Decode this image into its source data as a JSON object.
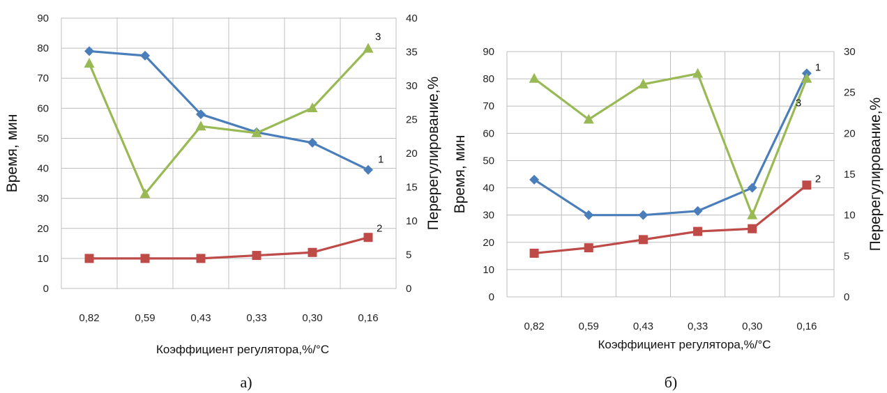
{
  "colors": {
    "series1": "#4a7ebb",
    "series2": "#be4b48",
    "series3": "#98b954",
    "grid": "#bdbdbd"
  },
  "chart_data": [
    {
      "type": "line",
      "panel_label": "а)",
      "categories": [
        "0,82",
        "0,59",
        "0,43",
        "0,33",
        "0,30",
        "0,16"
      ],
      "xlabel": "Коэффициент регулятора,%/°C",
      "ylabel": "Время, мин",
      "y2label": "Перерегулирование,%",
      "ylim": [
        0,
        90
      ],
      "yticks": [
        "0",
        "10",
        "20",
        "30",
        "40",
        "50",
        "60",
        "70",
        "80",
        "90"
      ],
      "y2lim": [
        0,
        40
      ],
      "y2ticks": [
        "0",
        "5",
        "10",
        "15",
        "20",
        "25",
        "30",
        "35",
        "40"
      ],
      "grid": true,
      "series": [
        {
          "name": "1",
          "axis": "left",
          "marker": "diamond",
          "values": [
            79,
            77.5,
            58,
            52,
            48.5,
            39.5
          ]
        },
        {
          "name": "2",
          "axis": "left",
          "marker": "square",
          "values": [
            10,
            10,
            10,
            11,
            12,
            17
          ]
        },
        {
          "name": "3",
          "axis": "right",
          "marker": "triangle",
          "values": [
            33.3,
            14,
            24,
            23,
            26.7,
            35.5
          ]
        }
      ]
    },
    {
      "type": "line",
      "panel_label": "б)",
      "categories": [
        "0,82",
        "0,59",
        "0,43",
        "0,33",
        "0,30",
        "0,16"
      ],
      "xlabel": "Коэффициент регулятора,%/°C",
      "ylabel": "Время, мин",
      "y2label": "Перерегулирование,%",
      "ylim": [
        0,
        90
      ],
      "yticks": [
        "0",
        "10",
        "20",
        "30",
        "40",
        "50",
        "60",
        "70",
        "80",
        "90"
      ],
      "y2lim": [
        0,
        30
      ],
      "y2ticks": [
        "0",
        "5",
        "10",
        "15",
        "20",
        "25",
        "30"
      ],
      "grid": true,
      "series": [
        {
          "name": "1",
          "axis": "left",
          "marker": "diamond",
          "values": [
            43,
            30,
            30,
            31.5,
            40,
            82
          ]
        },
        {
          "name": "2",
          "axis": "left",
          "marker": "square",
          "values": [
            16,
            18,
            21,
            24,
            25,
            41
          ]
        },
        {
          "name": "3",
          "axis": "right",
          "marker": "triangle",
          "values": [
            26.7,
            21.7,
            26,
            27.3,
            10,
            26.7
          ]
        }
      ]
    }
  ]
}
